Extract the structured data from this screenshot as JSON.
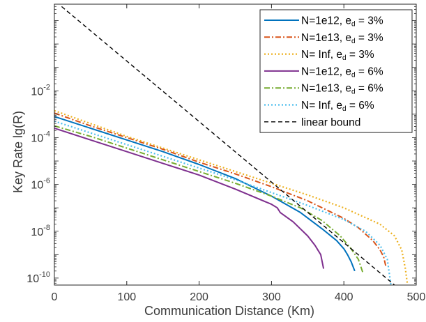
{
  "chart_data": {
    "type": "line",
    "xlabel": "Communication Distance (Km)",
    "ylabel": "Key Rate  lg(R)",
    "xlim": [
      0,
      500
    ],
    "ylim_log10": [
      -10.3,
      1.7
    ],
    "y_scale": "log",
    "x_ticks": [
      "0",
      "100",
      "200",
      "300",
      "400",
      "500"
    ],
    "y_ticks": [
      {
        "base": "10",
        "exp": "-2",
        "log10": -2
      },
      {
        "base": "10",
        "exp": "-4",
        "log10": -4
      },
      {
        "base": "10",
        "exp": "-6",
        "log10": -6
      },
      {
        "base": "10",
        "exp": "-8",
        "log10": -8
      },
      {
        "base": "10",
        "exp": "-10",
        "log10": -10
      }
    ],
    "legend_position": "top-right",
    "series": [
      {
        "name_main": "N=1e12, e",
        "name_sub": "d",
        "name_tail": " = 3%",
        "color": "#0072BD",
        "dash": "",
        "width": 2,
        "x": [
          0,
          50,
          100,
          150,
          200,
          250,
          300,
          340,
          370,
          390,
          400,
          405,
          410,
          415
        ],
        "y_log10": [
          -3.1,
          -3.6,
          -4.1,
          -4.6,
          -5.15,
          -5.75,
          -6.5,
          -7.2,
          -7.9,
          -8.4,
          -8.75,
          -9.0,
          -9.3,
          -9.7
        ]
      },
      {
        "name_main": "N=1e13, e",
        "name_sub": "d",
        "name_tail": " = 3%",
        "color": "#D95319",
        "dash": "8,3,2,3",
        "width": 2,
        "x": [
          0,
          50,
          100,
          150,
          200,
          250,
          300,
          350,
          400,
          420,
          440,
          450,
          455,
          458
        ],
        "y_log10": [
          -2.95,
          -3.5,
          -4.0,
          -4.5,
          -5.05,
          -5.55,
          -6.1,
          -6.7,
          -7.45,
          -7.85,
          -8.4,
          -8.8,
          -9.1,
          -9.5
        ]
      },
      {
        "name_main": "N=  Inf,   e",
        "name_sub": "d",
        "name_tail": " = 3%",
        "color": "#EDB120",
        "dash": "2,3",
        "width": 2.2,
        "x": [
          0,
          50,
          100,
          150,
          200,
          250,
          300,
          350,
          400,
          450,
          470,
          480,
          485,
          488
        ],
        "y_log10": [
          -2.85,
          -3.4,
          -3.95,
          -4.45,
          -4.95,
          -5.45,
          -5.95,
          -6.45,
          -7.0,
          -7.7,
          -8.2,
          -8.8,
          -9.6,
          -10.3
        ]
      },
      {
        "name_main": "N=1e12, e",
        "name_sub": "d",
        "name_tail": " = 6%",
        "color": "#7E2F8E",
        "dash": "",
        "width": 2,
        "x": [
          0,
          50,
          100,
          150,
          200,
          250,
          300,
          308,
          312,
          330,
          350,
          360,
          368,
          372
        ],
        "y_log10": [
          -3.6,
          -4.1,
          -4.6,
          -5.1,
          -5.6,
          -6.2,
          -6.85,
          -7.0,
          -7.2,
          -7.6,
          -8.2,
          -8.6,
          -9.0,
          -9.6
        ]
      },
      {
        "name_main": "N=1e13, e",
        "name_sub": "d",
        "name_tail": " = 6%",
        "color": "#77AC30",
        "dash": "8,3,2,3",
        "width": 2,
        "x": [
          0,
          50,
          100,
          150,
          200,
          250,
          300,
          340,
          370,
          395,
          410,
          420,
          426
        ],
        "y_log10": [
          -3.5,
          -3.95,
          -4.45,
          -4.95,
          -5.45,
          -5.95,
          -6.5,
          -7.0,
          -7.55,
          -8.2,
          -8.75,
          -9.2,
          -9.75
        ]
      },
      {
        "name_main": "N=  Inf,   e",
        "name_sub": "d",
        "name_tail": " = 6%",
        "color": "#4DBEEE",
        "dash": "2,3",
        "width": 2.2,
        "x": [
          0,
          50,
          100,
          150,
          200,
          250,
          300,
          350,
          400,
          430,
          450,
          460,
          465
        ],
        "y_log10": [
          -3.3,
          -3.8,
          -4.3,
          -4.8,
          -5.3,
          -5.8,
          -6.35,
          -6.9,
          -7.5,
          -8.0,
          -8.6,
          -9.2,
          -10.3
        ]
      },
      {
        "name_main": "linear bound",
        "name_sub": "",
        "name_tail": "",
        "color": "#000000",
        "dash": "6,4",
        "width": 1.4,
        "x": [
          10,
          470
        ],
        "y_log10": [
          1.6,
          -10.3
        ]
      }
    ]
  }
}
